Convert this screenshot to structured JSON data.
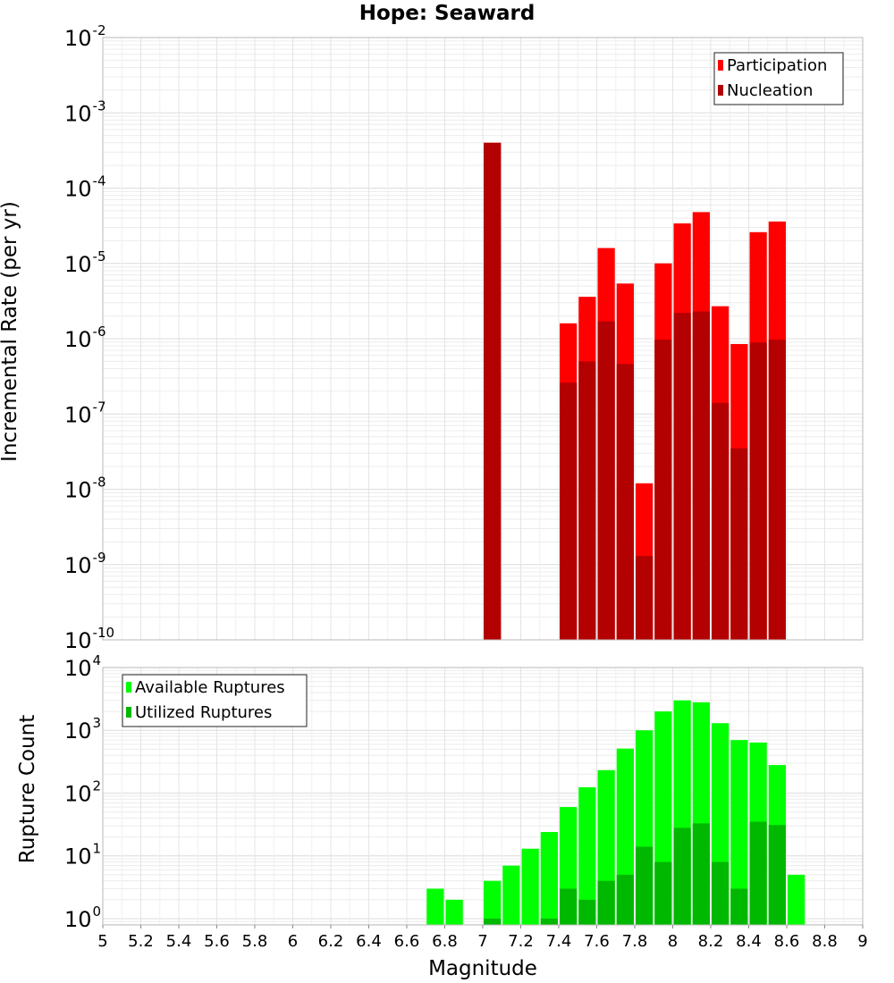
{
  "chart_data": {
    "title": "Hope: Seaward",
    "xlabel": "Magnitude",
    "xlim": [
      5,
      9
    ],
    "xticks": [
      "5",
      "5.2",
      "5.4",
      "5.6",
      "5.8",
      "6",
      "6.2",
      "6.4",
      "6.6",
      "6.8",
      "7",
      "7.2",
      "7.4",
      "7.6",
      "7.8",
      "8",
      "8.2",
      "8.4",
      "8.6",
      "8.8",
      "9"
    ],
    "bin_width": 0.1,
    "panels": [
      {
        "type": "bar",
        "scale": "log",
        "ylabel": "Incremental Rate (per yr)",
        "ylim_exponents": [
          -10,
          -2
        ],
        "grid": true,
        "legend_position": "top-right",
        "series": [
          {
            "name": "Participation",
            "color": "#ff0000",
            "x": [
              7.05,
              7.45,
              7.55,
              7.65,
              7.75,
              7.85,
              7.95,
              8.05,
              8.15,
              8.25,
              8.35,
              8.45,
              8.55
            ],
            "values": [
              0.0004,
              1.6e-06,
              3.6e-06,
              1.6e-05,
              5.4e-06,
              1.2e-08,
              1e-05,
              3.4e-05,
              4.8e-05,
              2.7e-06,
              8.5e-07,
              2.6e-05,
              3.6e-05
            ]
          },
          {
            "name": "Nucleation",
            "color": "#b30000",
            "x": [
              7.05,
              7.45,
              7.55,
              7.65,
              7.75,
              7.85,
              7.95,
              8.05,
              8.15,
              8.25,
              8.35,
              8.45,
              8.55
            ],
            "values": [
              0.0004,
              2.6e-07,
              5e-07,
              1.7e-06,
              4.6e-07,
              1.3e-09,
              9.7e-07,
              2.2e-06,
              2.3e-06,
              1.4e-07,
              3.5e-08,
              8.9e-07,
              9.7e-07
            ]
          }
        ]
      },
      {
        "type": "bar",
        "scale": "log",
        "ylabel": "Rupture Count",
        "ylim_exponents": [
          -0.1,
          4
        ],
        "grid": true,
        "legend_position": "top-left",
        "series": [
          {
            "name": "Available Ruptures",
            "color": "#00ff00",
            "x": [
              6.75,
              6.85,
              7.05,
              7.15,
              7.25,
              7.35,
              7.45,
              7.55,
              7.65,
              7.75,
              7.85,
              7.95,
              8.05,
              8.15,
              8.25,
              8.35,
              8.45,
              8.55,
              8.65
            ],
            "values": [
              3,
              2,
              4,
              7,
              13,
              24,
              60,
              124,
              232,
              512,
              1000,
              2000,
              3000,
              2800,
              1300,
              700,
              640,
              280,
              5
            ]
          },
          {
            "name": "Utilized Ruptures",
            "color": "#00b800",
            "x": [
              7.05,
              7.35,
              7.45,
              7.55,
              7.65,
              7.75,
              7.85,
              7.95,
              8.05,
              8.15,
              8.25,
              8.35,
              8.45,
              8.55
            ],
            "values": [
              1,
              1,
              3,
              2,
              4,
              5,
              14,
              8,
              28,
              33,
              8,
              3,
              35,
              31
            ]
          }
        ]
      }
    ]
  }
}
